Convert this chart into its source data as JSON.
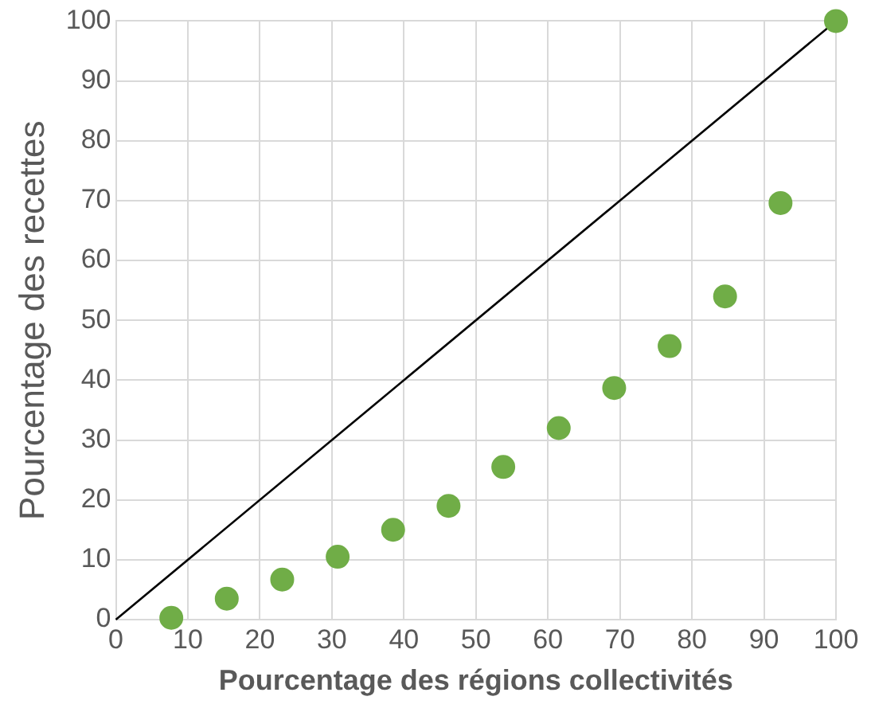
{
  "chart_data": {
    "type": "scatter",
    "xlabel": "Pourcentage des régions collectivités",
    "ylabel": "Pourcentage des recettes",
    "xlim": [
      0,
      100
    ],
    "ylim": [
      0,
      100
    ],
    "xticks": [
      0,
      10,
      20,
      30,
      40,
      50,
      60,
      70,
      80,
      90,
      100
    ],
    "yticks": [
      0,
      10,
      20,
      30,
      40,
      50,
      60,
      70,
      80,
      90,
      100
    ],
    "grid": true,
    "legend": false,
    "marker": "circle",
    "series": [
      {
        "color": "#70ad47",
        "x": [
          7.7,
          15.4,
          23.1,
          30.8,
          38.5,
          46.2,
          53.8,
          61.5,
          69.2,
          76.9,
          84.6,
          92.3,
          100
        ],
        "values": [
          0.3,
          3.5,
          6.7,
          10.5,
          15,
          19,
          25.5,
          32,
          38.7,
          45.7,
          54,
          69.6,
          100
        ]
      },
      {
        "type": "line",
        "color": "#000000",
        "x": [
          0,
          100
        ],
        "values": [
          0,
          100
        ],
        "marker": "none",
        "line_style": "solid"
      }
    ]
  }
}
